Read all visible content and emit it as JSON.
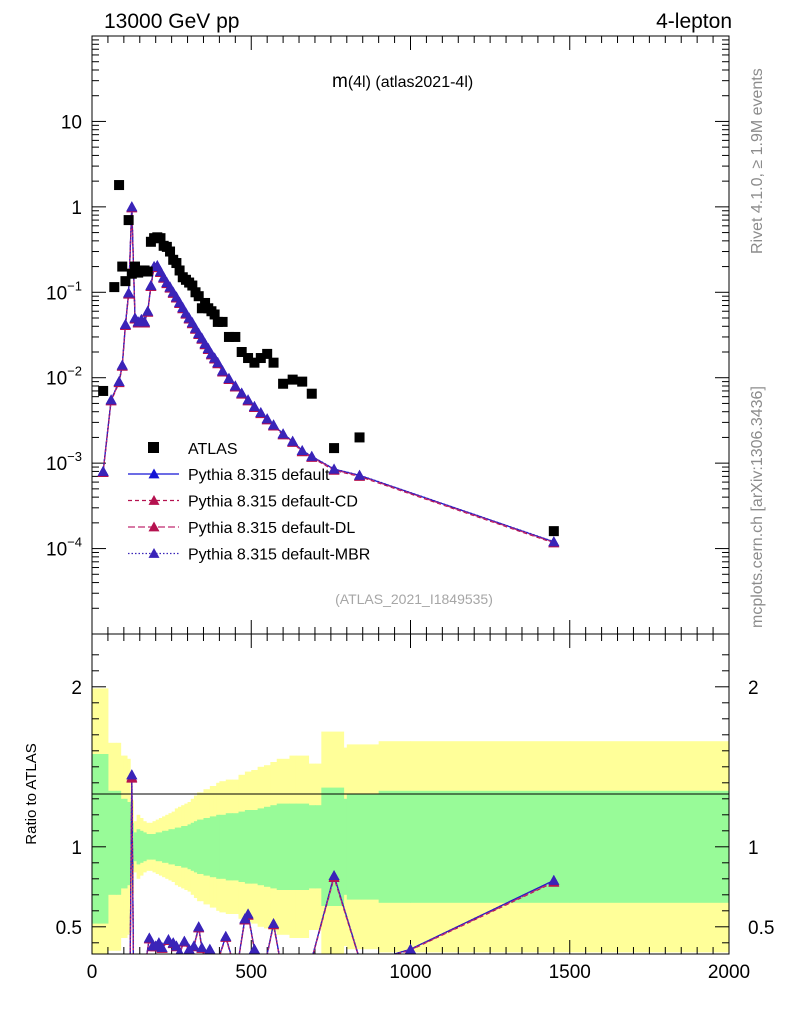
{
  "chart_data": {
    "header_left": "13000 GeV pp",
    "header_right": "4-lepton",
    "title": "m(4l) (atlas2021-4l)",
    "title_main": "m",
    "title_rest": "(4l) (atlas2021-4l)",
    "watermark": "(ATLAS_2021_I1849535)",
    "side_label_top": "Rivet 4.1.0, ≥ 1.9M events",
    "side_label_bottom": "mcplots.cern.ch [arXiv:1306.3436]",
    "ratio_ylabel": "Ratio to ATLAS",
    "main": {
      "type": "scatter",
      "yscale": "log",
      "xlim": [
        0,
        2000
      ],
      "ylim_exp": [
        -5,
        2
      ],
      "ytick_labels": [
        {
          "value": 10,
          "base": "10",
          "exp": ""
        },
        {
          "value": 1,
          "base": "1",
          "exp": ""
        },
        {
          "value": 0.1,
          "base": "10",
          "exp": "−1"
        },
        {
          "value": 0.01,
          "base": "10",
          "exp": "−2"
        },
        {
          "value": 0.001,
          "base": "10",
          "exp": "−3"
        },
        {
          "value": 0.0001,
          "base": "10",
          "exp": "−4"
        }
      ],
      "data": {
        "name": "ATLAS",
        "color": "#000000",
        "x": [
          35,
          70,
          85,
          95,
          105,
          115,
          125,
          135,
          145,
          155,
          165,
          175,
          185,
          195,
          205,
          215,
          225,
          235,
          245,
          255,
          265,
          275,
          285,
          295,
          305,
          315,
          325,
          335,
          345,
          355,
          365,
          375,
          385,
          395,
          410,
          430,
          450,
          470,
          490,
          510,
          530,
          550,
          570,
          600,
          630,
          660,
          690,
          760,
          840,
          1450
        ],
        "y": [
          0.007,
          0.115,
          1.8,
          0.2,
          0.135,
          0.7,
          0.165,
          0.2,
          0.17,
          0.18,
          0.18,
          0.175,
          0.39,
          0.43,
          0.44,
          0.43,
          0.35,
          0.34,
          0.3,
          0.24,
          0.22,
          0.18,
          0.15,
          0.14,
          0.13,
          0.12,
          0.1,
          0.09,
          0.065,
          0.075,
          0.065,
          0.06,
          0.055,
          0.045,
          0.045,
          0.03,
          0.03,
          0.02,
          0.017,
          0.015,
          0.017,
          0.019,
          0.015,
          0.0085,
          0.0095,
          0.009,
          0.0065,
          0.0015,
          0.002,
          0.00016
        ]
      },
      "series": [
        {
          "name": "Pythia 8.315 default",
          "color": "#1515d5",
          "dash": "",
          "marker": "#1515d5"
        },
        {
          "name": "Pythia 8.315 default-CD",
          "color": "#b5124f",
          "dash": "4 3",
          "marker": "#b5124f"
        },
        {
          "name": "Pythia 8.315 default-DL",
          "color": "#c02a72",
          "dash": "7 3",
          "marker": "#b5124f"
        },
        {
          "name": "Pythia 8.315 default-MBR",
          "color": "#3a24b8",
          "dash": "1.5 2",
          "marker": "#3a24b8"
        }
      ],
      "mc_x": [
        35,
        60,
        85,
        95,
        105,
        115,
        125,
        135,
        145,
        155,
        165,
        175,
        185,
        195,
        205,
        215,
        225,
        235,
        245,
        255,
        265,
        275,
        285,
        295,
        305,
        315,
        325,
        335,
        345,
        355,
        365,
        375,
        385,
        395,
        410,
        430,
        450,
        470,
        490,
        510,
        530,
        550,
        570,
        600,
        630,
        660,
        690,
        760,
        840,
        1450
      ],
      "mc_y": [
        0.0008,
        0.0055,
        0.009,
        0.014,
        0.042,
        0.098,
        1.0,
        0.05,
        0.045,
        0.048,
        0.045,
        0.06,
        0.12,
        0.2,
        0.205,
        0.175,
        0.15,
        0.13,
        0.115,
        0.1,
        0.088,
        0.076,
        0.066,
        0.057,
        0.05,
        0.044,
        0.038,
        0.033,
        0.029,
        0.025,
        0.022,
        0.019,
        0.017,
        0.015,
        0.012,
        0.0098,
        0.008,
        0.0066,
        0.0055,
        0.0046,
        0.0039,
        0.0033,
        0.0028,
        0.0022,
        0.0018,
        0.0014,
        0.0012,
        0.00085,
        0.00072,
        0.00012
      ]
    },
    "ratio": {
      "type": "line",
      "xlim": [
        0,
        2000
      ],
      "ylim": [
        0.33,
        2.33
      ],
      "yticks_major": [
        0.5,
        1,
        2
      ],
      "ytick_labels": [
        "0.5",
        "1",
        "2"
      ],
      "xticks_major": [
        0,
        500,
        1000,
        1500,
        2000
      ],
      "xtick_labels": [
        "0",
        "500",
        "1000",
        "1500",
        "2000"
      ],
      "bands": {
        "edges": [
          0,
          20,
          50,
          75,
          90,
          100,
          110,
          120,
          130,
          140,
          150,
          160,
          170,
          180,
          190,
          200,
          210,
          220,
          230,
          240,
          250,
          260,
          270,
          280,
          290,
          300,
          310,
          320,
          330,
          340,
          350,
          360,
          370,
          380,
          390,
          400,
          420,
          440,
          460,
          480,
          500,
          520,
          540,
          560,
          580,
          620,
          640,
          680,
          700,
          720,
          790,
          800,
          900,
          1000,
          1500,
          2000
        ],
        "yellow_hi": [
          1.99,
          1.99,
          1.65,
          1.65,
          1.57,
          1.57,
          1.55,
          1.29,
          1.16,
          1.2,
          1.18,
          1.16,
          1.15,
          1.15,
          1.16,
          1.17,
          1.18,
          1.19,
          1.2,
          1.21,
          1.22,
          1.24,
          1.25,
          1.26,
          1.27,
          1.28,
          1.3,
          1.32,
          1.34,
          1.34,
          1.36,
          1.36,
          1.38,
          1.38,
          1.4,
          1.41,
          1.42,
          1.42,
          1.45,
          1.47,
          1.48,
          1.5,
          1.51,
          1.53,
          1.55,
          1.57,
          1.57,
          1.52,
          1.52,
          1.72,
          1.62,
          1.64,
          1.66,
          1.66,
          1.66
        ],
        "yellow_lo": [
          0.05,
          0.05,
          0.35,
          0.35,
          0.43,
          0.43,
          0.45,
          0.71,
          0.84,
          0.8,
          0.82,
          0.84,
          0.85,
          0.85,
          0.84,
          0.83,
          0.82,
          0.81,
          0.8,
          0.79,
          0.78,
          0.76,
          0.75,
          0.74,
          0.73,
          0.72,
          0.7,
          0.68,
          0.66,
          0.66,
          0.64,
          0.64,
          0.62,
          0.62,
          0.6,
          0.59,
          0.58,
          0.58,
          0.55,
          0.53,
          0.52,
          0.5,
          0.49,
          0.47,
          0.45,
          0.43,
          0.43,
          0.48,
          0.48,
          0.28,
          0.38,
          0.36,
          0.34,
          0.34,
          0.34
        ],
        "green_hi": [
          1.58,
          1.58,
          1.35,
          1.35,
          1.3,
          1.3,
          1.28,
          1.15,
          1.09,
          1.11,
          1.1,
          1.09,
          1.08,
          1.08,
          1.08,
          1.09,
          1.09,
          1.1,
          1.1,
          1.11,
          1.11,
          1.12,
          1.12,
          1.13,
          1.13,
          1.14,
          1.15,
          1.16,
          1.17,
          1.17,
          1.18,
          1.18,
          1.19,
          1.19,
          1.2,
          1.2,
          1.21,
          1.21,
          1.22,
          1.23,
          1.23,
          1.24,
          1.25,
          1.26,
          1.27,
          1.27,
          1.27,
          1.26,
          1.26,
          1.37,
          1.3,
          1.33,
          1.35,
          1.35,
          1.35
        ],
        "green_lo": [
          0.52,
          0.52,
          0.7,
          0.7,
          0.74,
          0.74,
          0.76,
          0.86,
          0.91,
          0.89,
          0.9,
          0.91,
          0.92,
          0.92,
          0.92,
          0.91,
          0.91,
          0.9,
          0.9,
          0.89,
          0.89,
          0.88,
          0.88,
          0.87,
          0.87,
          0.86,
          0.85,
          0.84,
          0.83,
          0.83,
          0.82,
          0.82,
          0.81,
          0.81,
          0.8,
          0.8,
          0.79,
          0.79,
          0.78,
          0.77,
          0.77,
          0.76,
          0.75,
          0.74,
          0.73,
          0.73,
          0.73,
          0.74,
          0.74,
          0.63,
          0.7,
          0.67,
          0.65,
          0.65,
          0.65
        ]
      },
      "mc_x": [
        110,
        120,
        125,
        130,
        135,
        170,
        180,
        190,
        200,
        210,
        220,
        240,
        255,
        265,
        275,
        290,
        305,
        320,
        335,
        345,
        355,
        370,
        385,
        400,
        420,
        440,
        460,
        480,
        490,
        510,
        530,
        550,
        570,
        590,
        600,
        650,
        690,
        760,
        840,
        900,
        1000,
        1450
      ],
      "mc_y": [
        0.3,
        0.32,
        1.45,
        0.3,
        0.3,
        0.3,
        0.43,
        0.38,
        0.38,
        0.4,
        0.37,
        0.42,
        0.4,
        0.38,
        0.34,
        0.41,
        0.36,
        0.38,
        0.5,
        0.37,
        0.3,
        0.36,
        0.3,
        0.32,
        0.44,
        0.3,
        0.3,
        0.55,
        0.58,
        0.36,
        0.3,
        0.33,
        0.52,
        0.3,
        0.3,
        0.3,
        0.3,
        0.82,
        0.3,
        0.3,
        0.36,
        0.79
      ]
    }
  }
}
